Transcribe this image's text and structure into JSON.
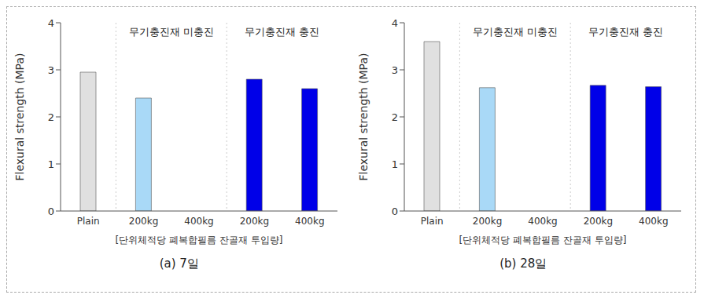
{
  "chart_data": [
    {
      "type": "bar",
      "title": "(a) 7일",
      "y_label": "Flexural strength (MPa)",
      "x_label": "[단위체적당 폐복합필름 잔골재 투입량]",
      "annotations": [
        "무기충진재 미충진",
        "무기충진재 충진"
      ],
      "categories": [
        "Plain",
        "200kg",
        "400kg",
        "200kg",
        "400kg"
      ],
      "values": [
        2.95,
        2.4,
        null,
        2.8,
        2.6
      ],
      "colors": [
        "#e0e0e0",
        "#a9d9f7",
        "#a9d9f7",
        "#0000e8",
        "#0000e8"
      ],
      "ylim": [
        0,
        4
      ],
      "yticks": [
        0,
        1,
        2,
        3,
        4
      ]
    },
    {
      "type": "bar",
      "title": "(b) 28일",
      "y_label": "Flexural strength (MPa)",
      "x_label": "[단위체적당 폐복합필름 잔골재 투입량]",
      "annotations": [
        "무기충진재 미충진",
        "무기충진재 충진"
      ],
      "categories": [
        "Plain",
        "200kg",
        "400kg",
        "200kg",
        "400kg"
      ],
      "values": [
        3.6,
        2.62,
        null,
        2.67,
        2.64
      ],
      "colors": [
        "#e0e0e0",
        "#a9d9f7",
        "#a9d9f7",
        "#0000e8",
        "#0000e8"
      ],
      "ylim": [
        0,
        4
      ],
      "yticks": [
        0,
        1,
        2,
        3,
        4
      ]
    }
  ]
}
